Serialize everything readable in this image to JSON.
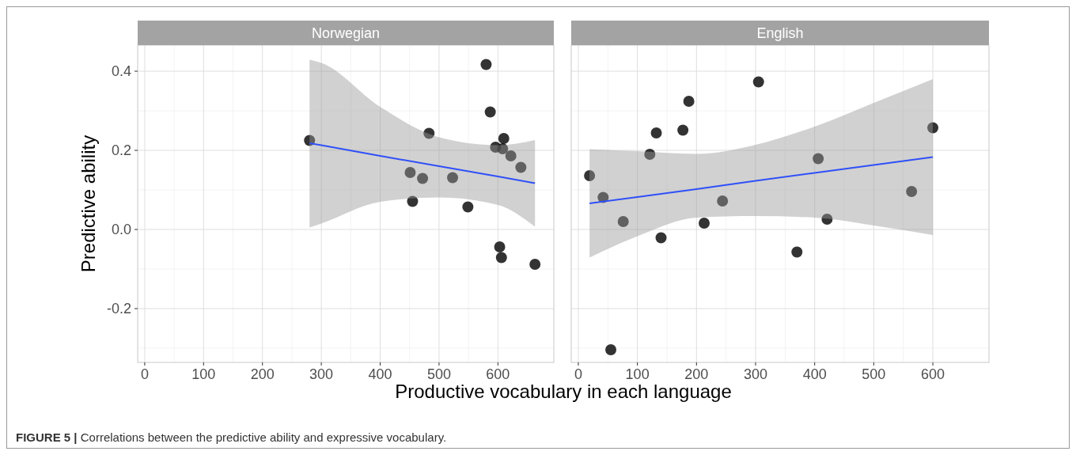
{
  "chart_data": [
    {
      "type": "scatter",
      "title": "Norwegian",
      "ylabel": "Predictive ability",
      "xlabel": "Productive vocabulary in each language",
      "annotations": [
        "FIGURE 5 | Correlations between the predictive ability and expressive vocabulary."
      ],
      "xlim": [
        -12,
        695
      ],
      "xticks": [
        0,
        100,
        200,
        300,
        400,
        500,
        600
      ],
      "ylim": [
        -0.336,
        0.466
      ],
      "yticks": [
        -0.2,
        {
          "value": 0,
          "label": "0.0"
        },
        0.2,
        0.4
      ],
      "grid": true,
      "series": [
        {
          "marker": "circle",
          "color": "#000000",
          "x": [
            280,
            483,
            580,
            587,
            610,
            596,
            608,
            622,
            639,
            451,
            472,
            523,
            455,
            549,
            603,
            606,
            663
          ],
          "values": [
            0.225,
            0.243,
            0.417,
            0.297,
            0.23,
            0.208,
            0.204,
            0.186,
            0.157,
            0.144,
            0.129,
            0.131,
            0.071,
            0.057,
            -0.044,
            -0.071,
            -0.088
          ]
        },
        {
          "type": "line",
          "marker": "none",
          "color": "#3050f8",
          "x": [
            280,
            300,
            400,
            500,
            600,
            663
          ],
          "values": [
            0.218,
            0.213,
            0.186,
            0.16,
            0.134,
            0.117
          ],
          "lower": [
            0.005,
            0.015,
            0.07,
            0.081,
            0.062,
            0.007
          ],
          "upper": [
            0.429,
            0.421,
            0.31,
            0.233,
            0.213,
            0.226
          ]
        }
      ]
    },
    {
      "type": "scatter",
      "title": "English",
      "tick_labels": "x",
      "xlim": [
        -12,
        695
      ],
      "xticks": [
        0,
        100,
        200,
        300,
        400,
        500,
        600
      ],
      "ylim": [
        -0.336,
        0.466
      ],
      "yticks": [
        -0.2,
        0,
        0.2,
        0.4
      ],
      "grid": true,
      "series": [
        {
          "marker": "circle",
          "color": "#000000",
          "x": [
            19,
            42,
            76,
            55,
            121,
            132,
            140,
            177,
            187,
            213,
            244,
            305,
            370,
            406,
            421,
            564,
            600
          ],
          "values": [
            0.136,
            0.081,
            0.02,
            -0.304,
            0.19,
            0.244,
            -0.021,
            0.251,
            0.324,
            0.016,
            0.072,
            0.373,
            -0.057,
            0.179,
            0.026,
            0.096,
            0.257
          ]
        },
        {
          "type": "line",
          "marker": "none",
          "color": "#3050f8",
          "x": [
            19,
            100,
            200,
            300,
            400,
            500,
            600
          ],
          "values": [
            0.066,
            0.082,
            0.102,
            0.123,
            0.143,
            0.163,
            0.183
          ],
          "lower": [
            -0.071,
            -0.017,
            0.03,
            0.034,
            0.03,
            0.01,
            -0.014
          ],
          "upper": [
            0.203,
            0.198,
            0.191,
            0.214,
            0.26,
            0.32,
            0.38
          ]
        }
      ]
    }
  ]
}
